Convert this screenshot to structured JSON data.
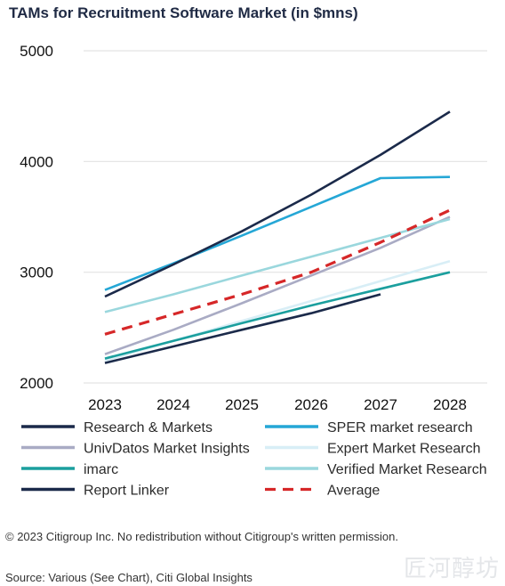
{
  "title": "TAMs for Recruitment Software Market (in $mns)",
  "copyright": "© 2023 Citigroup Inc. No redistribution without Citigroup's written permission.",
  "source": "Source: Various (See Chart), Citi Global Insights",
  "watermark": "匠河醇坊",
  "colors": {
    "navy": "#1b2a4a",
    "sper": "#25a7d6",
    "univ": "#a9abc4",
    "expert": "#d8eef6",
    "imarc": "#1b9f9e",
    "verified": "#9ad7dd",
    "average": "#d62728"
  },
  "chart_data": {
    "type": "line",
    "x": [
      2023,
      2024,
      2025,
      2026,
      2027,
      2028
    ],
    "ylim": [
      2000,
      5000
    ],
    "yticks": [
      2000,
      3000,
      4000,
      5000
    ],
    "grid": true,
    "legend_position": "bottom",
    "series": [
      {
        "name": "Research & Markets",
        "color": "#1b2a4a",
        "dashed": false,
        "values": [
          2780,
          3070,
          3370,
          3700,
          4060,
          4450
        ]
      },
      {
        "name": "SPER market research",
        "color": "#25a7d6",
        "dashed": false,
        "values": [
          2840,
          3080,
          3330,
          3590,
          3850,
          3860
        ]
      },
      {
        "name": "UnivDatos Market Insights",
        "color": "#a9abc4",
        "dashed": false,
        "values": [
          2260,
          2480,
          2720,
          2970,
          3220,
          3500
        ]
      },
      {
        "name": "Expert Market Research",
        "color": "#d8eef6",
        "dashed": false,
        "values": [
          2200,
          2380,
          2560,
          2740,
          2920,
          3100
        ]
      },
      {
        "name": "imarc",
        "color": "#1b9f9e",
        "dashed": false,
        "values": [
          2220,
          2380,
          2540,
          2700,
          2850,
          3000
        ]
      },
      {
        "name": "Verified Market Research",
        "color": "#9ad7dd",
        "dashed": false,
        "values": [
          2640,
          2800,
          2970,
          3140,
          3310,
          3480
        ]
      },
      {
        "name": "Report Linker",
        "color": "#1b2a4a",
        "dashed": false,
        "values": [
          2180,
          2330,
          2480,
          2630,
          2800,
          null
        ]
      },
      {
        "name": "Average",
        "color": "#d62728",
        "dashed": true,
        "values": [
          2440,
          2620,
          2800,
          3000,
          3270,
          3560
        ]
      }
    ]
  }
}
